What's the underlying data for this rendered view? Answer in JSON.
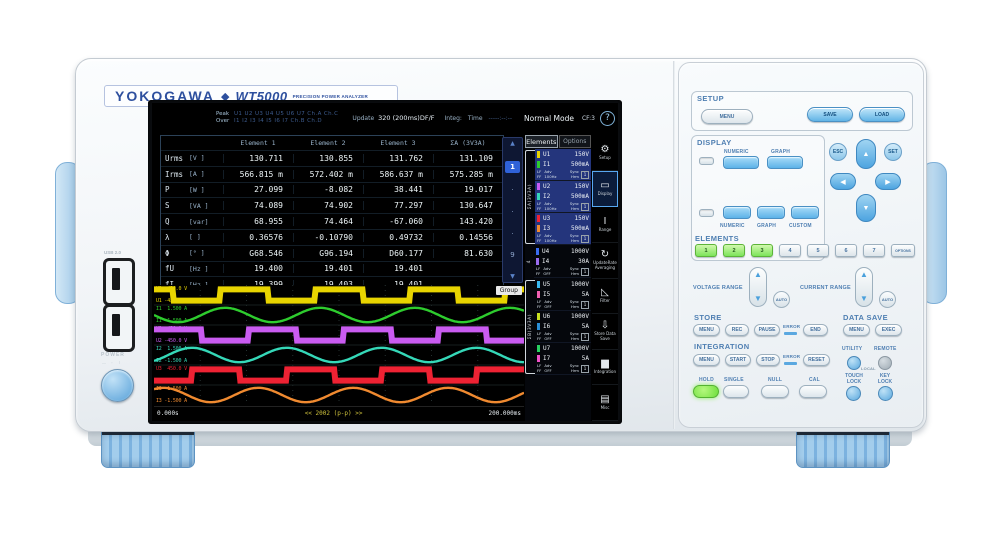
{
  "device": {
    "brand": "YOKOGAWA",
    "diamond": "◆",
    "model": "WT5000",
    "model_desc": "PRECISION POWER ANALYZER",
    "usb_label": "USB 2.0",
    "power_label": "POWER",
    "power_sym": "— ◦ ⏽"
  },
  "screen": {
    "header": {
      "peak_label": "Peak",
      "over_label": "Over",
      "peak_channels": "U1 U2 U3 U4 U5 U6 U7 Ch.A Ch.C",
      "over_channels": "I1 I2 I3 I4 I5 I6 I7 Ch.B Ch.D",
      "update_label": "Update",
      "update_value": "320 (200ms)DF/F",
      "integ_label": "Integ:",
      "time_label": "Time",
      "time_value": "-----:--:--",
      "mode": "Normal Mode",
      "cf": "CF:3",
      "help": "?"
    },
    "table": {
      "columns": [
        "Element 1",
        "Element 2",
        "Element 3",
        "ΣA (3V3A)"
      ],
      "rows": [
        {
          "name": "Urms",
          "unit": "[V  ]",
          "values": [
            "130.711",
            "130.855",
            "131.762",
            "131.109"
          ]
        },
        {
          "name": "Irms",
          "unit": "[A  ]",
          "values": [
            "566.815 m",
            "572.402 m",
            "586.637 m",
            "575.285 m"
          ]
        },
        {
          "name": "P",
          "unit": "[W  ]",
          "values": [
            "27.099",
            "-8.082",
            "38.441",
            "19.017"
          ]
        },
        {
          "name": "S",
          "unit": "[VA ]",
          "values": [
            "74.089",
            "74.902",
            "77.297",
            "130.647"
          ]
        },
        {
          "name": "Q",
          "unit": "[var]",
          "values": [
            "68.955",
            "74.464",
            "-67.060",
            "143.420"
          ]
        },
        {
          "name": "λ",
          "unit": "[   ]",
          "values": [
            "0.36576",
            "-0.10790",
            "0.49732",
            "0.14556"
          ]
        },
        {
          "name": "Φ",
          "unit": "[°  ]",
          "values": [
            "G68.546",
            "G96.194",
            "D60.177",
            "81.630"
          ]
        },
        {
          "name": "fU",
          "unit": "[Hz ]",
          "values": [
            "19.400",
            "19.401",
            "19.401",
            ""
          ]
        },
        {
          "name": "fI",
          "unit": "[Hz ]",
          "values": [
            "19.399",
            "19.403",
            "19.401",
            ""
          ]
        }
      ]
    },
    "pager": {
      "up": "▲",
      "down": "▼",
      "items": [
        "1",
        "·",
        "·",
        "·",
        "9"
      ],
      "active": "1"
    },
    "wave_area": {
      "group_tab": "Group"
    },
    "elements_panel": {
      "tabs": [
        "Elements",
        "Options"
      ],
      "active_tab": "Elements",
      "footer": {
        "lf": "LF",
        "ff": "FF",
        "adv": "Adv",
        "sync": "Sync",
        "hrm": "Hrm",
        "badge": "1"
      },
      "groups": [
        {
          "bracket": "ΣA(3V3A)",
          "brace": true,
          "highlight": true,
          "pairs": [
            {
              "u_ch": "U1",
              "u_range": "150V",
              "u_color": "#e8d400",
              "i_ch": "I1",
              "i_range": "500mA",
              "i_color": "#2ecc2e",
              "adv": "100Hz"
            },
            {
              "u_ch": "U2",
              "u_range": "150V",
              "u_color": "#c95bf0",
              "i_ch": "I2",
              "i_range": "500mA",
              "i_color": "#35d8b8",
              "adv": "100Hz"
            },
            {
              "u_ch": "U3",
              "u_range": "150V",
              "u_color": "#ee2233",
              "i_ch": "I3",
              "i_range": "500mA",
              "i_color": "#f08a30",
              "adv": "100Hz"
            }
          ]
        },
        {
          "bracket": "4",
          "brace": false,
          "highlight": false,
          "pairs": [
            {
              "u_ch": "U4",
              "u_range": "1000V",
              "u_color": "#3a6cf0",
              "i_ch": "I4",
              "i_range": "30A",
              "i_color": "#9a6cf0",
              "adv": "OFF"
            }
          ]
        },
        {
          "bracket": "ΣB(3V3A)",
          "brace": true,
          "highlight": false,
          "pairs": [
            {
              "u_ch": "U5",
              "u_range": "1000V",
              "u_color": "#38b8f0",
              "i_ch": "I5",
              "i_range": "5A",
              "i_color": "#f060b0",
              "adv": "OFF"
            },
            {
              "u_ch": "U6",
              "u_range": "1000V",
              "u_color": "#c8e020",
              "i_ch": "I6",
              "i_range": "5A",
              "i_color": "#2a8fd8",
              "adv": "OFF"
            },
            {
              "u_ch": "U7",
              "u_range": "1000V",
              "u_color": "#28d060",
              "i_ch": "I7",
              "i_range": "5A",
              "i_color": "#f050c8",
              "adv": "OFF"
            }
          ]
        }
      ]
    },
    "menu_icons": [
      {
        "glyph": "⚙",
        "label": "Setup",
        "active": false
      },
      {
        "glyph": "▭",
        "label": "Display",
        "active": true
      },
      {
        "glyph": "I",
        "label": "Range",
        "active": false
      },
      {
        "glyph": "↻",
        "label": "UpdateRate Averaging",
        "active": false
      },
      {
        "glyph": "◺",
        "label": "Filter",
        "active": false
      },
      {
        "glyph": "⇩",
        "label": "Store Data Save",
        "active": false
      },
      {
        "glyph": "▆",
        "label": "Integration",
        "active": false
      },
      {
        "glyph": "▤",
        "label": "Misc",
        "active": false
      }
    ]
  },
  "chart_data": {
    "type": "line",
    "title": "Waveform display",
    "x_start_label": "0.000s",
    "x_end_label": "200.000ms",
    "center_label": "<< 2002 (p-p) >>",
    "cycles_visible": 3.9,
    "grid": true,
    "waves": [
      {
        "ch": "U1",
        "kind": "square",
        "color": "#e8d400",
        "scale_top": "450.0 V",
        "scale_bottom": "-450.0 V",
        "phase": 0.3
      },
      {
        "ch": "I1",
        "kind": "sine",
        "color": "#2ecc2e",
        "scale_top": "1.500 A",
        "scale_bottom": "-1.500 A",
        "phase": 0.5
      },
      {
        "ch": "U2",
        "kind": "square",
        "color": "#c95bf0",
        "scale_top": "450.0 V",
        "scale_bottom": "-450.0 V",
        "phase": 0.0
      },
      {
        "ch": "I2",
        "kind": "sine",
        "color": "#35d8b8",
        "scale_top": "1.500 A",
        "scale_bottom": "-1.500 A",
        "phase": 0.85
      },
      {
        "ch": "U3",
        "kind": "square",
        "color": "#ee2233",
        "scale_top": "450.0 V",
        "scale_bottom": "-450.0 V",
        "phase": 0.6
      },
      {
        "ch": "I3",
        "kind": "sine",
        "color": "#f08a30",
        "scale_top": "1.500 A",
        "scale_bottom": "-1.500 A",
        "phase": 0.15
      }
    ]
  },
  "panel": {
    "setup": {
      "title": "SETUP",
      "menu": "MENU",
      "save": "SAVE",
      "load": "LOAD"
    },
    "display": {
      "title": "DISPLAY",
      "row1_labels": [
        "NUMERIC",
        "GRAPH"
      ],
      "row2_labels": [
        "NUMERIC",
        "GRAPH",
        "CUSTOM"
      ]
    },
    "nav": {
      "esc": "ESC",
      "set": "SET",
      "up": "▲",
      "down": "▼",
      "left": "◀",
      "right": "▶"
    },
    "elements": {
      "title": "ELEMENTS",
      "buttons": [
        "1",
        "2",
        "3",
        "4",
        "5",
        "6",
        "7"
      ],
      "lit": [
        "1",
        "2",
        "3"
      ],
      "options": "OPTIONS"
    },
    "voltage_range": {
      "label": "VOLTAGE RANGE",
      "auto": "AUTO",
      "up": "▲",
      "down": "▼"
    },
    "current_range": {
      "label": "CURRENT RANGE",
      "auto": "AUTO",
      "up": "▲",
      "down": "▼"
    },
    "store": {
      "title": "STORE",
      "buttons": [
        "MENU",
        "REC",
        "PAUSE"
      ],
      "error": "ERROR",
      "end": "END"
    },
    "data_save": {
      "title": "DATA SAVE",
      "menu": "MENU",
      "exec": "EXEC"
    },
    "integration": {
      "title": "INTEGRATION",
      "buttons": [
        "MENU",
        "START",
        "STOP"
      ],
      "error": "ERROR",
      "reset": "RESET"
    },
    "utility_label": "UTILITY",
    "remote_label": "REMOTE",
    "local_label": "LOCAL",
    "hold_row": [
      {
        "label": "HOLD",
        "lit": true
      },
      {
        "label": "SINGLE",
        "lit": false
      },
      {
        "label": "NULL",
        "lit": false
      },
      {
        "label": "CAL",
        "lit": false
      }
    ],
    "touch_lock": [
      "TOUCH",
      "LOCK"
    ],
    "key_lock": [
      "KEY",
      "LOCK"
    ]
  }
}
